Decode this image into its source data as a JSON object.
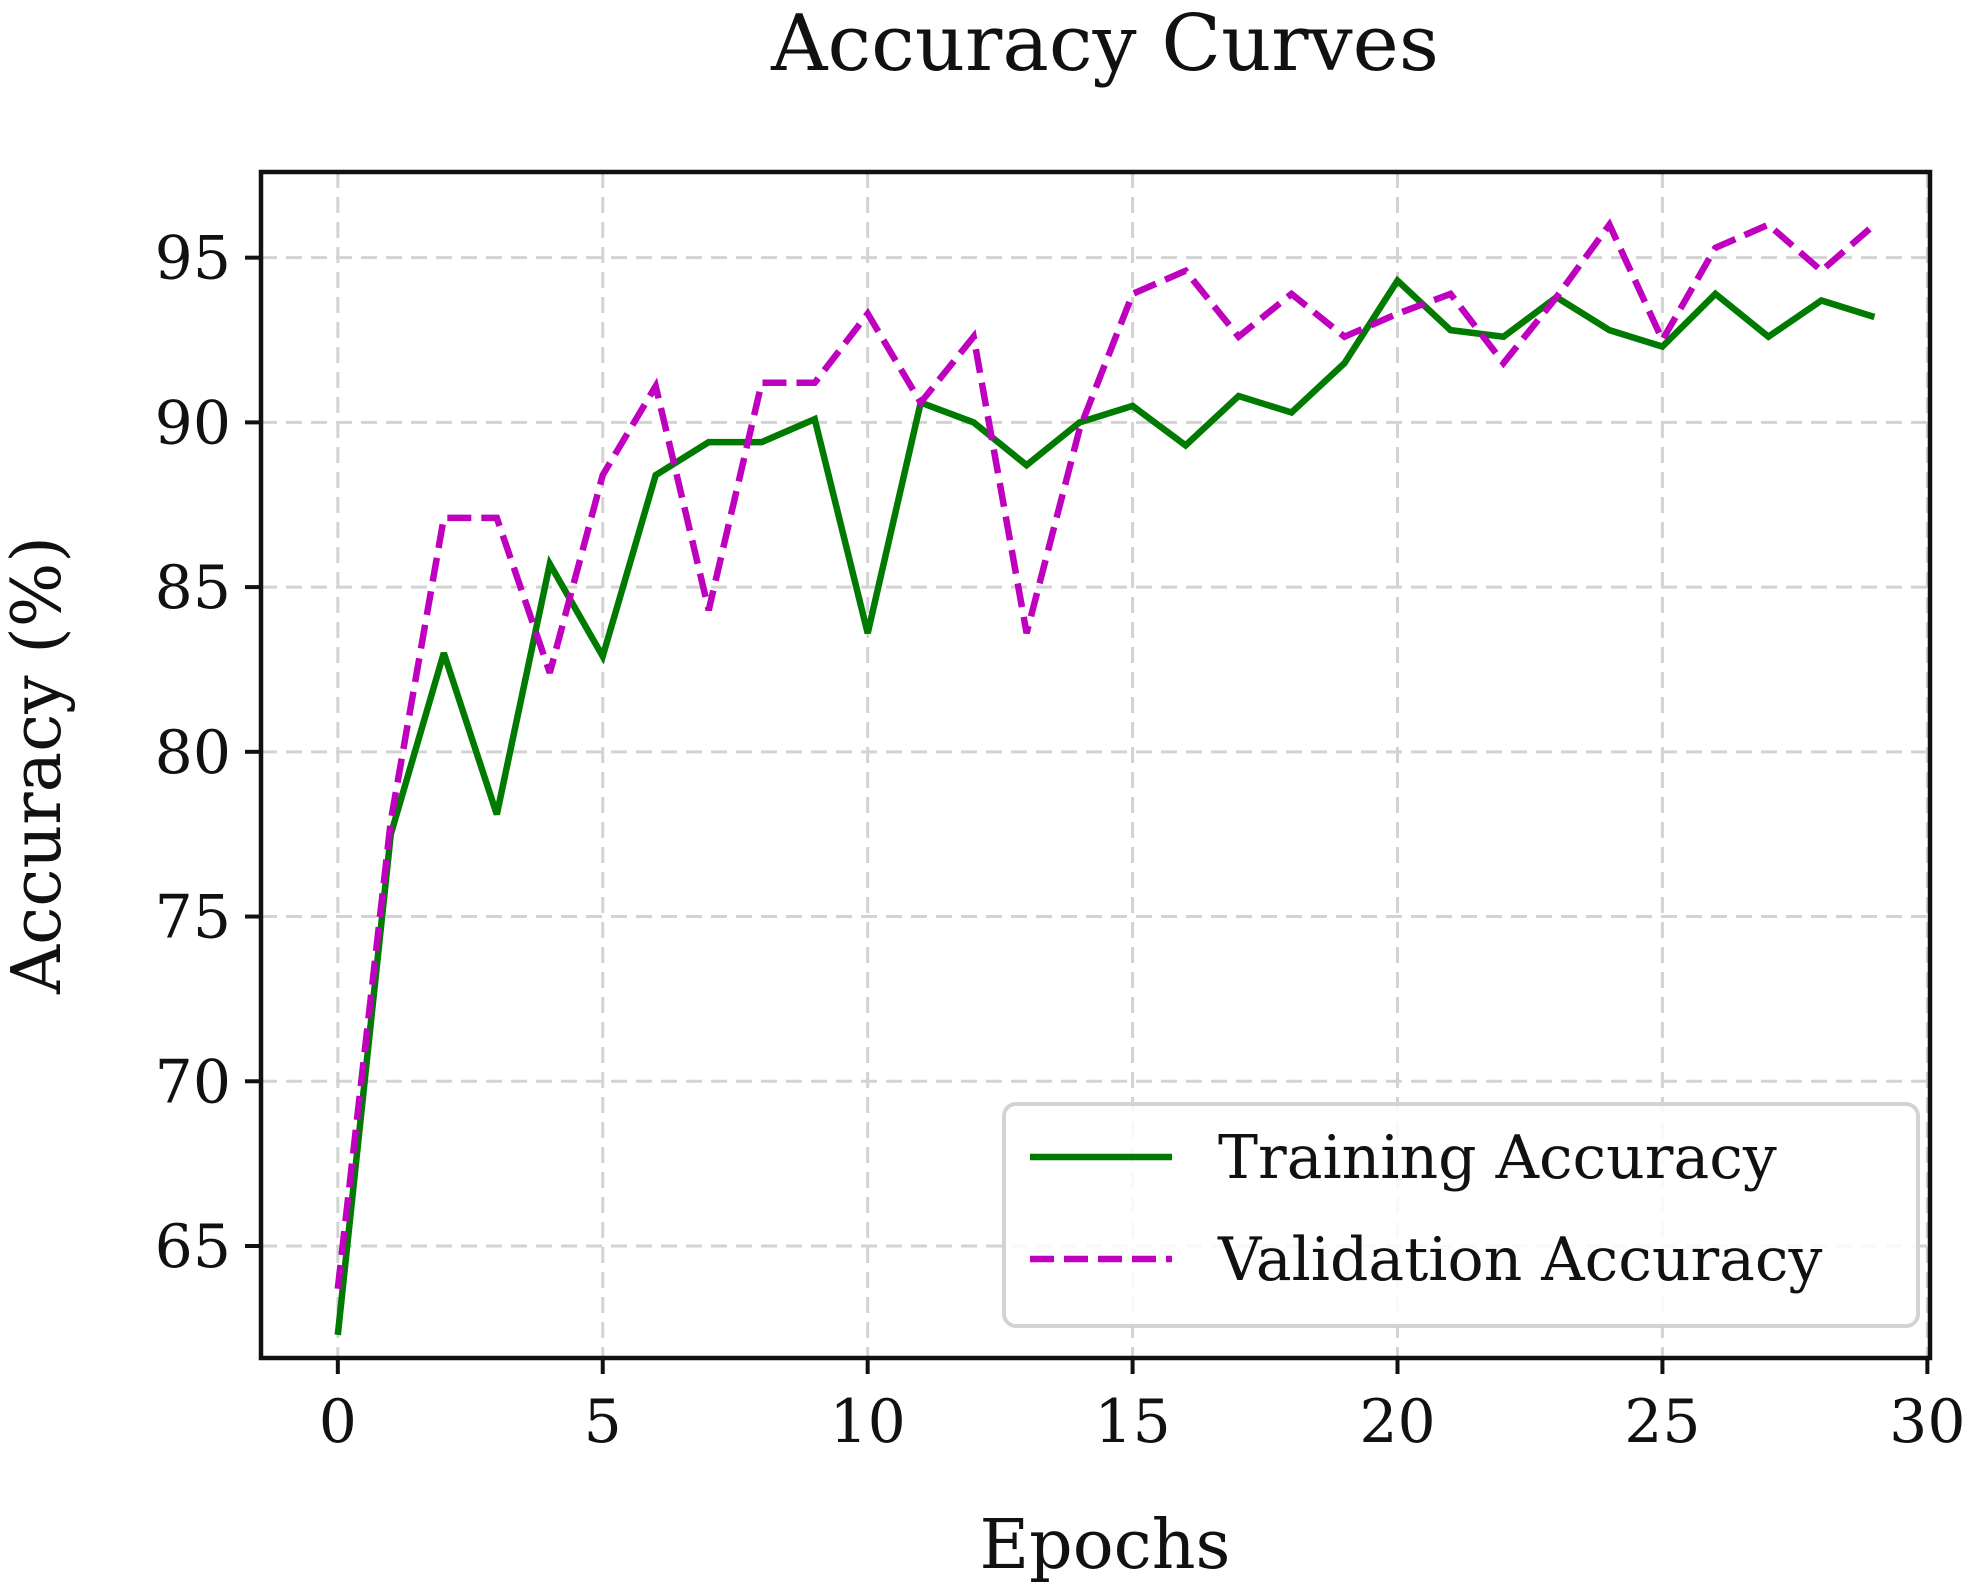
{
  "chart_data": {
    "type": "line",
    "title": "Accuracy Curves",
    "xlabel": "Epochs",
    "ylabel": "Accuracy (%)",
    "xlim": [
      -1.45,
      30.05
    ],
    "ylim": [
      61.6,
      97.6
    ],
    "xticks": [
      0,
      5,
      10,
      15,
      20,
      25,
      30
    ],
    "yticks": [
      65,
      70,
      75,
      80,
      85,
      90,
      95
    ],
    "grid": true,
    "legend_position": "lower-right",
    "x": [
      0,
      1,
      2,
      3,
      4,
      5,
      6,
      7,
      8,
      9,
      10,
      11,
      12,
      13,
      14,
      15,
      16,
      17,
      18,
      19,
      20,
      21,
      22,
      23,
      24,
      25,
      26,
      27,
      28,
      29
    ],
    "series": [
      {
        "name": "Training Accuracy",
        "color": "#007a00",
        "style": "solid",
        "values": [
          62.3,
          77.5,
          83.0,
          78.1,
          85.7,
          82.9,
          88.4,
          89.4,
          89.4,
          90.1,
          83.6,
          90.6,
          90.0,
          88.7,
          90.0,
          90.5,
          89.3,
          90.8,
          90.3,
          91.8,
          94.3,
          92.8,
          92.6,
          93.8,
          92.8,
          92.3,
          93.9,
          92.6,
          93.7,
          93.2
        ]
      },
      {
        "name": "Validation Accuracy",
        "color": "#bf00bf",
        "style": "dashed",
        "values": [
          63.7,
          77.9,
          87.1,
          87.1,
          82.4,
          88.4,
          91.1,
          84.3,
          91.2,
          91.2,
          93.3,
          90.6,
          92.6,
          83.6,
          89.8,
          93.9,
          94.6,
          92.6,
          93.9,
          92.6,
          93.3,
          93.9,
          91.8,
          93.8,
          96.0,
          92.5,
          95.3,
          96.0,
          94.6,
          96.0
        ]
      }
    ]
  }
}
